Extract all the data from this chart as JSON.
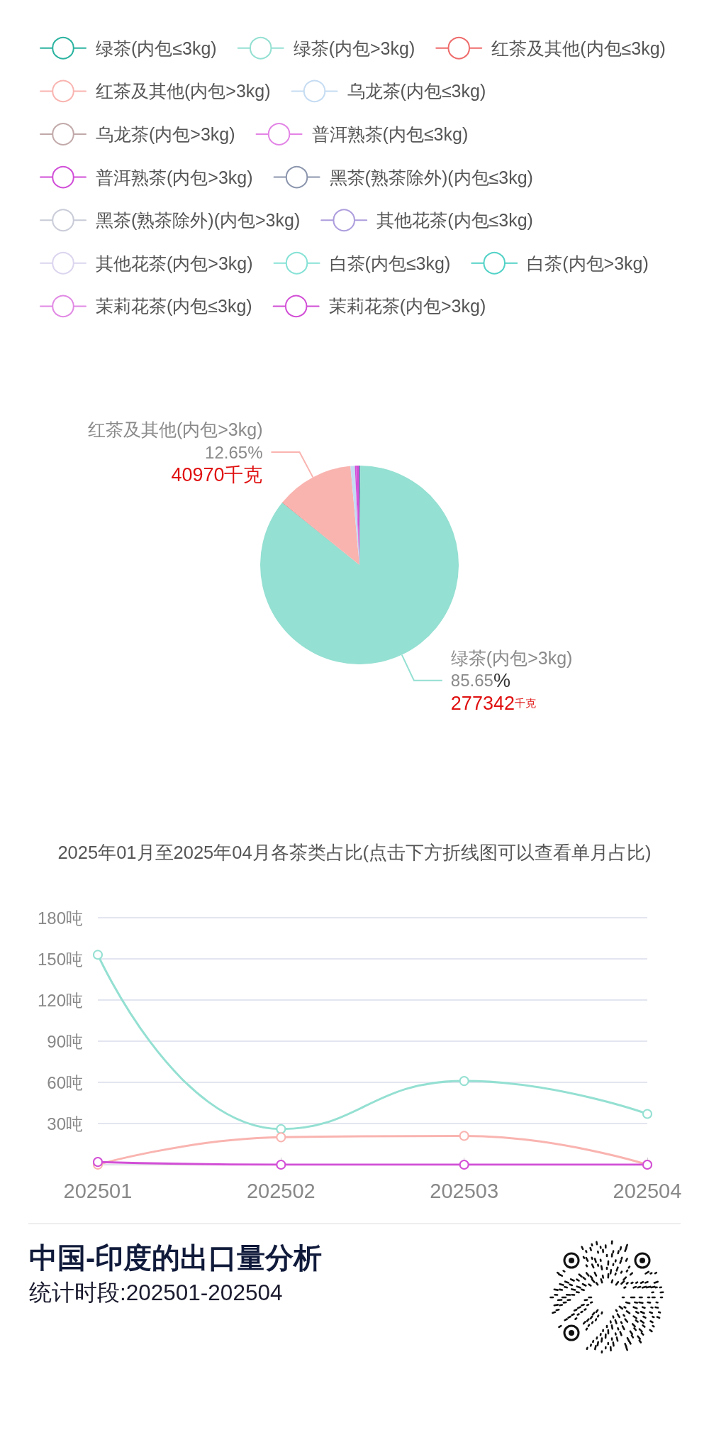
{
  "chart_data": [
    {
      "type": "pie",
      "title": "2025年01月至2025年04月各茶类占比(点击下方折线图可以查看单月占比)",
      "categories": [
        null,
        "绿茶(内包>3kg)",
        null,
        "红茶及其他(内包>3kg)",
        null,
        null,
        null
      ],
      "values": [
        500,
        277342,
        300,
        40970,
        2300,
        600,
        1800
      ],
      "colors": [
        "#2bb3a0",
        "#94e0d2",
        "#ef6b6b",
        "#f9b4b0",
        "#c5dcf2",
        "#d14fd8",
        "#d24fd6"
      ],
      "value_labels": [
        null,
        "85.65%\n277342千克",
        null,
        "12.65%\n40970千克",
        null,
        null,
        null
      ]
    },
    {
      "type": "line",
      "title": "中国-印度的出口量分析",
      "subtitle": "统计时段:202501-202504",
      "categories": [
        "202501",
        "202502",
        "202503",
        "202504"
      ],
      "series": [
        {
          "name": "绿茶(内包≤3kg)",
          "color": "#2bb3a0",
          "values": [
            null,
            null,
            null,
            null
          ]
        },
        {
          "name": "绿茶(内包>3kg)",
          "color": "#94e0d2",
          "values": [
            153,
            26,
            61,
            37
          ]
        },
        {
          "name": "红茶及其他(内包≤3kg)",
          "color": "#ef6b6b",
          "values": [
            null,
            null,
            null,
            null
          ]
        },
        {
          "name": "红茶及其他(内包>3kg)",
          "color": "#f9b4b0",
          "values": [
            0,
            20,
            21,
            0
          ]
        },
        {
          "name": "乌龙茶(内包≤3kg)",
          "color": "#c5dcf2",
          "values": [
            null,
            null,
            null,
            null
          ]
        },
        {
          "name": "乌龙茶(内包>3kg)",
          "color": "#c2a9a9",
          "values": [
            null,
            null,
            null,
            null
          ]
        },
        {
          "name": "普洱熟茶(内包≤3kg)",
          "color": "#e384e6",
          "values": [
            null,
            null,
            null,
            null
          ]
        },
        {
          "name": "普洱熟茶(内包>3kg)",
          "color": "#d14fd8",
          "values": [
            null,
            null,
            null,
            null
          ]
        },
        {
          "name": "黑茶(熟茶除外)(内包≤3kg)",
          "color": "#8b95ad",
          "values": [
            null,
            null,
            null,
            null
          ]
        },
        {
          "name": "黑茶(熟茶除外)(内包>3kg)",
          "color": "#c9ccd8",
          "values": [
            null,
            null,
            null,
            null
          ]
        },
        {
          "name": "其他花茶(内包≤3kg)",
          "color": "#ad9ddd",
          "values": [
            null,
            null,
            null,
            null
          ]
        },
        {
          "name": "其他花茶(内包>3kg)",
          "color": "#dcd5ef",
          "values": [
            null,
            null,
            null,
            null
          ]
        },
        {
          "name": "白茶(内包≤3kg)",
          "color": "#86e2d6",
          "values": [
            null,
            null,
            null,
            null
          ]
        },
        {
          "name": "白茶(内包>3kg)",
          "color": "#52d2c7",
          "values": [
            null,
            null,
            null,
            null
          ]
        },
        {
          "name": "茉莉花茶(内包≤3kg)",
          "color": "#e189e4",
          "values": [
            null,
            null,
            null,
            null
          ]
        },
        {
          "name": "茉莉花茶(内包>3kg)",
          "color": "#d24fd6",
          "values": [
            2,
            0,
            0,
            0
          ]
        }
      ],
      "ylim": [
        0,
        180
      ],
      "yticks": [
        {
          "value": 30,
          "label": "30吨"
        },
        {
          "value": 60,
          "label": "60吨"
        },
        {
          "value": 90,
          "label": "90吨"
        },
        {
          "value": 120,
          "label": "120吨"
        },
        {
          "value": 150,
          "label": "150吨"
        },
        {
          "value": 180,
          "label": "180吨"
        }
      ],
      "grid": "y",
      "legend": "top",
      "marker": "circle",
      "line_style": "solid"
    }
  ]
}
